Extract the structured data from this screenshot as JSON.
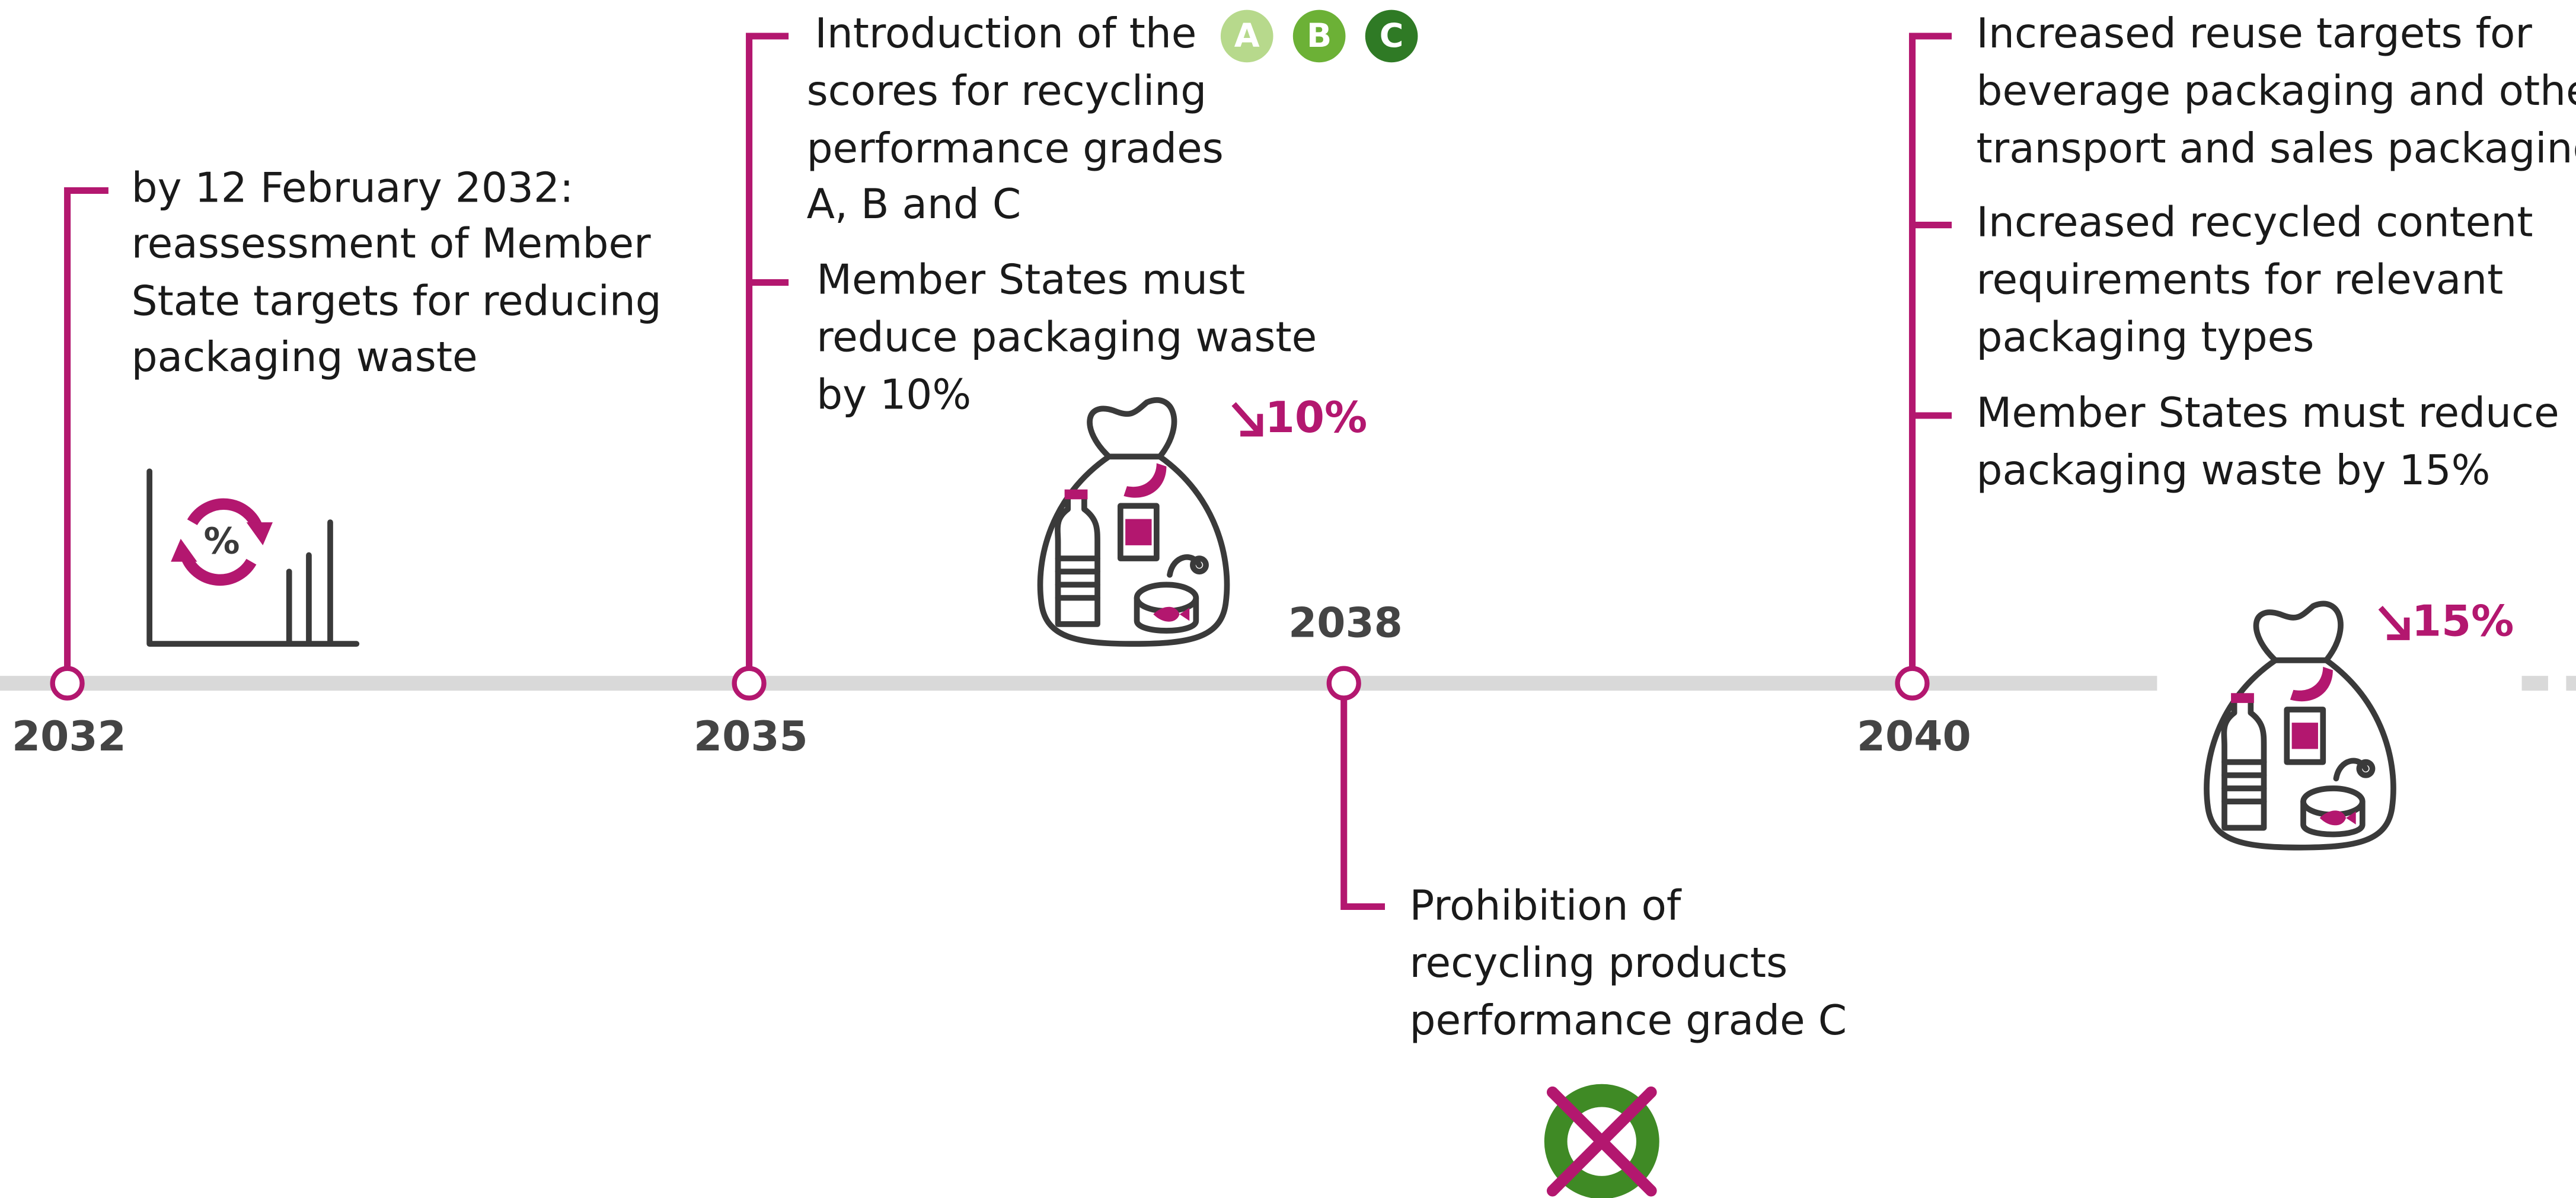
{
  "timeline": {
    "milestones": [
      {
        "year": "2032",
        "events": [
          {
            "lines": [
              "by 12 February 2032:",
              "reassessment of Member",
              "State targets for reducing",
              "packaging waste"
            ]
          }
        ],
        "icon_label": "%"
      },
      {
        "year": "2035",
        "events": [
          {
            "lines": [
              "Introduction of the",
              "scores for recycling",
              "performance grades",
              "A, B and C"
            ]
          },
          {
            "lines": [
              "Member States must",
              "reduce packaging waste",
              "by 10%"
            ]
          }
        ],
        "grades": [
          "A",
          "B",
          "C"
        ],
        "reduction": "10%"
      },
      {
        "year": "2038",
        "events": [
          {
            "lines": [
              "Prohibition of",
              "recycling products",
              "performance grade C"
            ]
          }
        ]
      },
      {
        "year": "2040",
        "events": [
          {
            "lines": [
              "Increased reuse targets for",
              "beverage packaging and other",
              "transport and sales packaging"
            ]
          },
          {
            "lines": [
              "Increased recycled content",
              "requirements for relevant",
              "packaging types"
            ]
          },
          {
            "lines": [
              "Member States must reduce",
              "packaging waste by 15%"
            ]
          }
        ],
        "reduction": "15%"
      }
    ]
  }
}
